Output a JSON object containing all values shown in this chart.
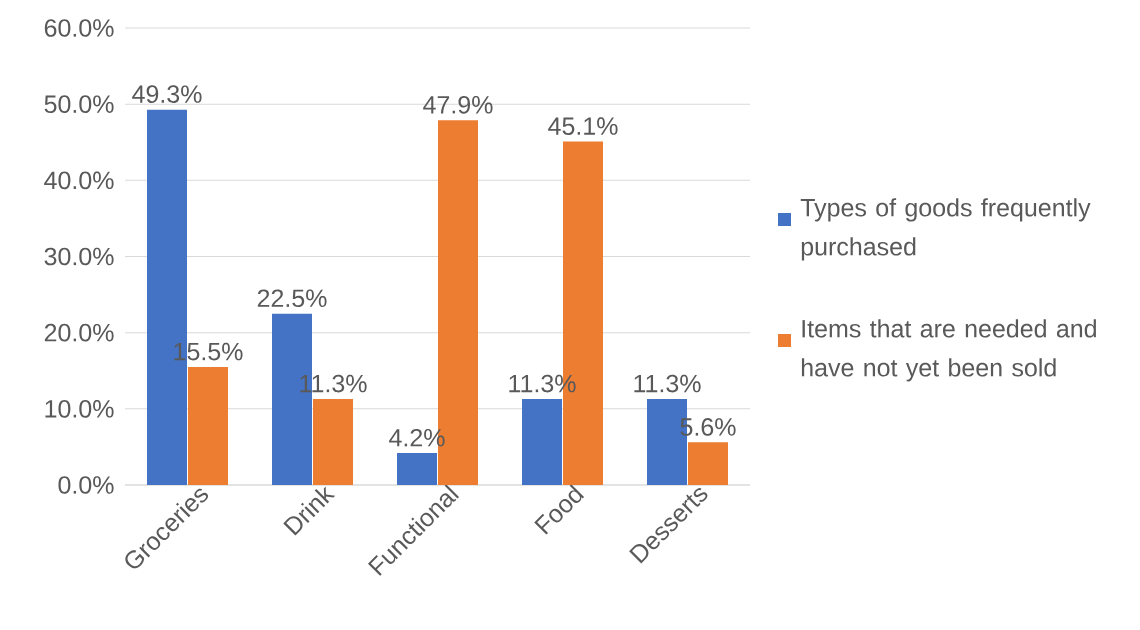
{
  "chart_data": {
    "type": "bar",
    "categories": [
      "Groceries",
      "Drink",
      "Functional",
      "Food",
      "Desserts"
    ],
    "series": [
      {
        "name": "Types of goods frequently purchased",
        "color": "#4472c4",
        "values": [
          49.3,
          22.5,
          4.2,
          11.3,
          11.3
        ],
        "value_labels": [
          "49.3%",
          "22.5%",
          "4.2%",
          "11.3%",
          "11.3%"
        ]
      },
      {
        "name": "Items that are needed and have not yet been sold",
        "color": "#ed7d31",
        "values": [
          15.5,
          11.3,
          47.9,
          45.1,
          5.6
        ],
        "value_labels": [
          "15.5%",
          "11.3%",
          "47.9%",
          "45.1%",
          "5.6%"
        ]
      }
    ],
    "ylim": [
      0,
      60
    ],
    "yticks": [
      {
        "value": 0,
        "label": "0.0%"
      },
      {
        "value": 10,
        "label": "10.0%"
      },
      {
        "value": 20,
        "label": "20.0%"
      },
      {
        "value": 30,
        "label": "30.0%"
      },
      {
        "value": 40,
        "label": "40.0%"
      },
      {
        "value": 50,
        "label": "50.0%"
      },
      {
        "value": 60,
        "label": "60.0%"
      }
    ],
    "grid": "y",
    "legend": "right"
  }
}
